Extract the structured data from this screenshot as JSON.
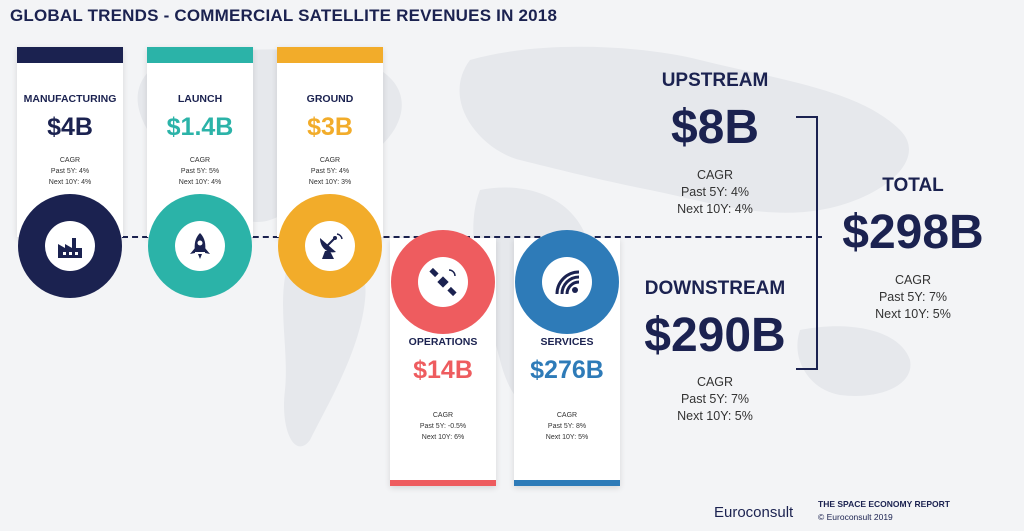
{
  "title": "GLOBAL TRENDS - COMMERCIAL SATELLITE REVENUES IN 2018",
  "segments": [
    {
      "name": "MANUFACTURING",
      "value": "$4B",
      "cagr": "CAGR",
      "past": "Past 5Y: 4%",
      "next": "Next 10Y: 4%",
      "color": "#1b2250",
      "icon": "factory-icon"
    },
    {
      "name": "LAUNCH",
      "value": "$1.4B",
      "cagr": "CAGR",
      "past": "Past 5Y: 5%",
      "next": "Next 10Y: 4%",
      "color": "#2bb3a8",
      "icon": "rocket-icon"
    },
    {
      "name": "GROUND",
      "value": "$3B",
      "cagr": "CAGR",
      "past": "Past 5Y: 4%",
      "next": "Next 10Y: 3%",
      "color": "#f2ac2a",
      "icon": "satellite-dish-icon"
    },
    {
      "name": "OPERATIONS",
      "value": "$14B",
      "cagr": "CAGR",
      "past": "Past 5Y: -0.5%",
      "next": "Next 10Y: 6%",
      "color": "#ee5c5f",
      "icon": "satellite-icon"
    },
    {
      "name": "SERVICES",
      "value": "$276B",
      "cagr": "CAGR",
      "past": "Past 5Y: 8%",
      "next": "Next 10Y: 5%",
      "color": "#2e7bb8",
      "icon": "wifi-icon"
    }
  ],
  "upstream": {
    "label": "UPSTREAM",
    "value": "$8B",
    "cagr": "CAGR",
    "past": "Past 5Y: 4%",
    "next": "Next 10Y: 4%"
  },
  "downstream": {
    "label": "DOWNSTREAM",
    "value": "$290B",
    "cagr": "CAGR",
    "past": "Past 5Y: 7%",
    "next": "Next 10Y: 5%"
  },
  "total": {
    "label": "TOTAL",
    "value": "$298B",
    "cagr": "CAGR",
    "past": "Past 5Y: 7%",
    "next": "Next 10Y: 5%"
  },
  "footer": {
    "logo": "Euroconsult",
    "report": "THE SPACE ECONOMY REPORT",
    "copyright": "© Euroconsult 2019"
  }
}
